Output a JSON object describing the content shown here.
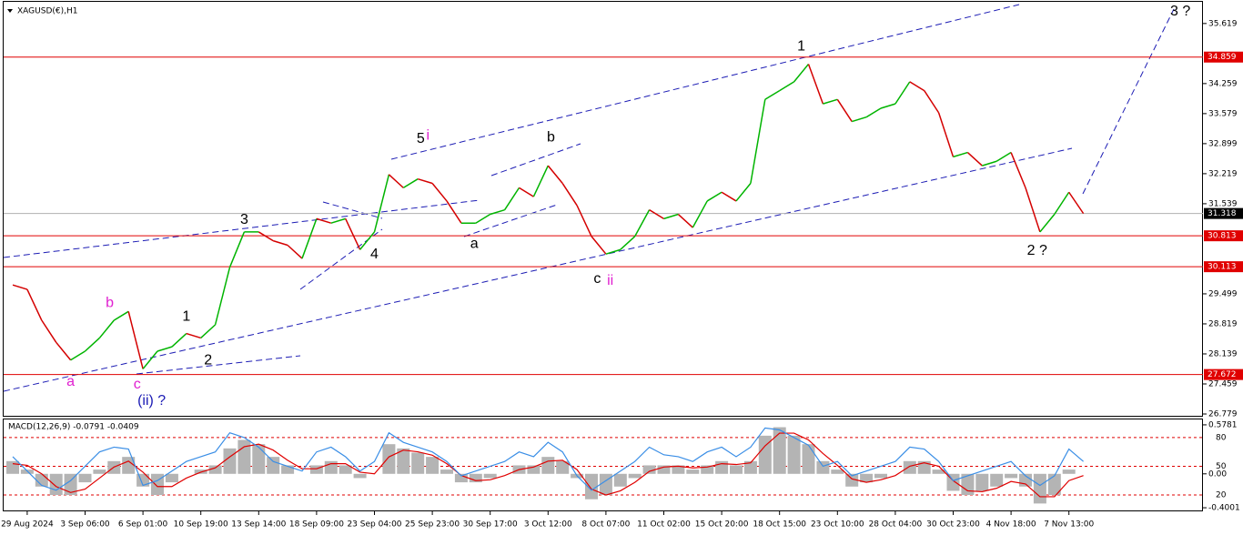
{
  "chart_data": [
    {
      "type": "line",
      "title": "XAGUSD(€),H1",
      "categories": [
        null,
        "29 Aug 2024",
        null,
        null,
        null,
        "3 Sep 06:00",
        null,
        null,
        null,
        "6 Sep 01:00",
        null,
        null,
        null,
        "10 Sep 19:00",
        null,
        null,
        null,
        "13 Sep 14:00",
        null,
        null,
        null,
        "18 Sep 09:00",
        null,
        null,
        null,
        "23 Sep 04:00",
        null,
        null,
        null,
        "25 Sep 23:00",
        null,
        null,
        null,
        "30 Sep 17:00",
        null,
        null,
        null,
        "3 Oct 12:00",
        null,
        null,
        null,
        "8 Oct 07:00",
        null,
        null,
        null,
        "11 Oct 02:00",
        null,
        null,
        null,
        "15 Oct 20:00",
        null,
        null,
        null,
        "18 Oct 15:00",
        null,
        null,
        null,
        "23 Oct 10:00",
        null,
        null,
        null,
        "28 Oct 04:00",
        null,
        null,
        null,
        "30 Oct 23:00",
        null,
        null,
        null,
        "4 Nov 18:00",
        null,
        null,
        null,
        "7 Nov 13:00",
        null
      ],
      "series": [
        {
          "up_color": "#00b400",
          "down_color": "#d40000",
          "values": [
            29.7,
            29.6,
            28.9,
            28.4,
            28.0,
            28.2,
            28.5,
            28.9,
            29.1,
            27.8,
            28.2,
            28.3,
            28.6,
            28.5,
            28.8,
            30.1,
            30.9,
            30.9,
            30.7,
            30.6,
            30.3,
            31.2,
            31.1,
            31.2,
            30.5,
            30.9,
            32.2,
            31.9,
            32.1,
            32.0,
            31.6,
            31.1,
            31.1,
            31.3,
            31.4,
            31.9,
            31.7,
            32.4,
            32.0,
            31.5,
            30.8,
            30.4,
            30.5,
            30.8,
            31.4,
            31.2,
            31.3,
            31.0,
            31.6,
            31.8,
            31.6,
            32.0,
            33.9,
            34.1,
            34.3,
            34.7,
            33.8,
            33.9,
            33.4,
            33.5,
            33.7,
            33.8,
            34.3,
            34.1,
            33.6,
            32.6,
            32.7,
            32.4,
            32.5,
            32.7,
            31.9,
            30.9,
            31.3,
            31.8,
            31.318
          ]
        }
      ],
      "ylim": [
        26.717,
        36.11
      ],
      "yticks": [
        35.619,
        34.259,
        33.579,
        32.899,
        32.219,
        31.539,
        29.499,
        28.819,
        28.139,
        27.459,
        26.779
      ],
      "levels": [
        34.859,
        30.813,
        30.113,
        27.672
      ],
      "level_color": "#e00000",
      "current_price": 31.318,
      "annotations": [
        {
          "text": "a",
          "x": 4.0,
          "y": 27.5,
          "color": "#e020d0"
        },
        {
          "text": "b",
          "x": 6.7,
          "y": 29.29,
          "color": "#e020d0"
        },
        {
          "text": "c",
          "x": 8.6,
          "y": 27.44,
          "color": "#e020d0"
        },
        {
          "text": "(ii) ?",
          "x": 9.6,
          "y": 27.07,
          "color": "#1a1ab4"
        },
        {
          "text": "1",
          "x": 12.0,
          "y": 28.98,
          "color": "#000000"
        },
        {
          "text": "2",
          "x": 13.5,
          "y": 27.99,
          "color": "#000000"
        },
        {
          "text": "3",
          "x": 16.0,
          "y": 31.17,
          "color": "#000000"
        },
        {
          "text": "4",
          "x": 25.0,
          "y": 30.39,
          "color": "#000000"
        },
        {
          "text": "5",
          "x": 28.2,
          "y": 33.0,
          "color": "#000000"
        },
        {
          "text": "i",
          "x": 28.7,
          "y": 33.08,
          "color": "#e020d0"
        },
        {
          "text": "a",
          "x": 31.9,
          "y": 30.63,
          "color": "#000000"
        },
        {
          "text": "b",
          "x": 37.2,
          "y": 33.04,
          "color": "#000000"
        },
        {
          "text": "c",
          "x": 40.4,
          "y": 29.83,
          "color": "#000000"
        },
        {
          "text": "ii",
          "x": 41.3,
          "y": 29.79,
          "color": "#e020d0"
        },
        {
          "text": "1",
          "x": 54.5,
          "y": 35.1,
          "color": "#000000"
        },
        {
          "text": "2 ?",
          "x": 70.8,
          "y": 30.47,
          "color": "#000000"
        },
        {
          "text": "3 ?",
          "x": 80.7,
          "y": 35.89,
          "color": "#000000"
        }
      ]
    },
    {
      "type": "macd",
      "title": "MACD(12,26,9) -0.0791 -0.0409",
      "series": [
        {
          "kind": "histogram",
          "color": "#b4b4b4",
          "values": [
            0.15,
            0.05,
            -0.15,
            -0.25,
            -0.25,
            -0.1,
            0.05,
            0.15,
            0.2,
            -0.15,
            -0.25,
            -0.1,
            0.0,
            0.05,
            0.1,
            0.3,
            0.4,
            0.35,
            0.2,
            0.1,
            0.0,
            0.1,
            0.15,
            0.1,
            -0.05,
            0.0,
            0.35,
            0.3,
            0.25,
            0.2,
            0.05,
            -0.1,
            -0.1,
            -0.05,
            0.0,
            0.1,
            0.1,
            0.2,
            0.15,
            -0.05,
            -0.3,
            -0.25,
            -0.15,
            -0.05,
            0.1,
            0.1,
            0.1,
            0.05,
            0.1,
            0.15,
            0.1,
            0.15,
            0.45,
            0.55,
            0.45,
            0.35,
            0.15,
            0.05,
            -0.15,
            -0.1,
            -0.05,
            0.0,
            0.15,
            0.15,
            0.05,
            -0.2,
            -0.25,
            -0.2,
            -0.15,
            -0.05,
            -0.15,
            -0.35,
            -0.25,
            0.05,
            0.0
          ]
        },
        {
          "kind": "line",
          "color": "#e00000",
          "values": [
            0.12,
            0.1,
            0.0,
            -0.15,
            -0.22,
            -0.18,
            -0.05,
            0.08,
            0.15,
            0.02,
            -0.15,
            -0.15,
            -0.05,
            0.02,
            0.07,
            0.2,
            0.32,
            0.35,
            0.28,
            0.16,
            0.06,
            0.06,
            0.12,
            0.12,
            0.02,
            0.0,
            0.2,
            0.28,
            0.26,
            0.22,
            0.12,
            -0.02,
            -0.08,
            -0.07,
            -0.02,
            0.05,
            0.08,
            0.15,
            0.16,
            0.05,
            -0.18,
            -0.25,
            -0.2,
            -0.1,
            0.03,
            0.08,
            0.09,
            0.07,
            0.08,
            0.12,
            0.11,
            0.13,
            0.33,
            0.48,
            0.48,
            0.4,
            0.24,
            0.1,
            -0.06,
            -0.1,
            -0.07,
            -0.02,
            0.09,
            0.13,
            0.09,
            -0.08,
            -0.2,
            -0.21,
            -0.17,
            -0.09,
            -0.12,
            -0.27,
            -0.27,
            -0.08,
            -0.02
          ]
        },
        {
          "kind": "line",
          "color": "#3a8ee6",
          "axis": "y2",
          "values": [
            60,
            45,
            30,
            25,
            35,
            50,
            65,
            70,
            68,
            30,
            35,
            45,
            55,
            60,
            65,
            85,
            80,
            70,
            55,
            50,
            45,
            65,
            70,
            60,
            45,
            55,
            85,
            75,
            70,
            65,
            55,
            40,
            45,
            50,
            55,
            65,
            60,
            75,
            65,
            40,
            25,
            35,
            45,
            55,
            70,
            62,
            60,
            55,
            65,
            70,
            60,
            70,
            90,
            88,
            80,
            72,
            50,
            55,
            40,
            45,
            50,
            55,
            70,
            68,
            55,
            35,
            40,
            45,
            50,
            55,
            40,
            30,
            40,
            68,
            55
          ]
        }
      ],
      "ylim": [
        -0.421,
        0.631
      ],
      "yticks": [
        0.5781,
        {
          "value": 0,
          "label": "0.00"
        },
        -0.4001
      ],
      "y2lim": [
        4.8,
        98
      ],
      "y2ticks": [
        80,
        50,
        20
      ]
    }
  ]
}
